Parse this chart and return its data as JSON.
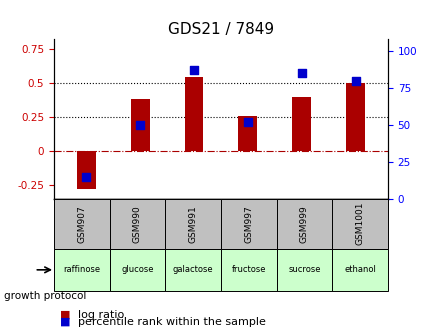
{
  "title": "GDS21 / 7849",
  "categories": [
    "GSM907",
    "GSM990",
    "GSM991",
    "GSM997",
    "GSM999",
    "GSM1001"
  ],
  "protocols": [
    "raffinose",
    "glucose",
    "galactose",
    "fructose",
    "sucrose",
    "ethanol"
  ],
  "log_ratios": [
    -0.28,
    0.38,
    0.54,
    0.26,
    0.4,
    0.5
  ],
  "percentile_ranks": [
    15,
    50,
    87,
    52,
    85,
    80
  ],
  "bar_color": "#aa0000",
  "dot_color": "#0000cc",
  "ylim_left": [
    -0.35,
    0.82
  ],
  "ylim_right": [
    0,
    108
  ],
  "yticks_left": [
    -0.25,
    0,
    0.25,
    0.5,
    0.75
  ],
  "yticks_right": [
    0,
    25,
    50,
    75,
    100
  ],
  "hlines": [
    0.0,
    0.25,
    0.5
  ],
  "hline_styles": [
    "dashdot",
    "dotted",
    "dotted"
  ],
  "hline_colors": [
    "#aa0000",
    "#000000",
    "#000000"
  ],
  "protocol_colors": [
    "#ccffcc",
    "#ccffcc",
    "#ccffcc",
    "#ccffcc",
    "#ccffcc",
    "#ccffcc"
  ],
  "label_log_ratio": "log ratio",
  "label_percentile": "percentile rank within the sample",
  "growth_protocol_label": "growth protocol",
  "title_fontsize": 11,
  "tick_fontsize": 7.5,
  "legend_fontsize": 8
}
